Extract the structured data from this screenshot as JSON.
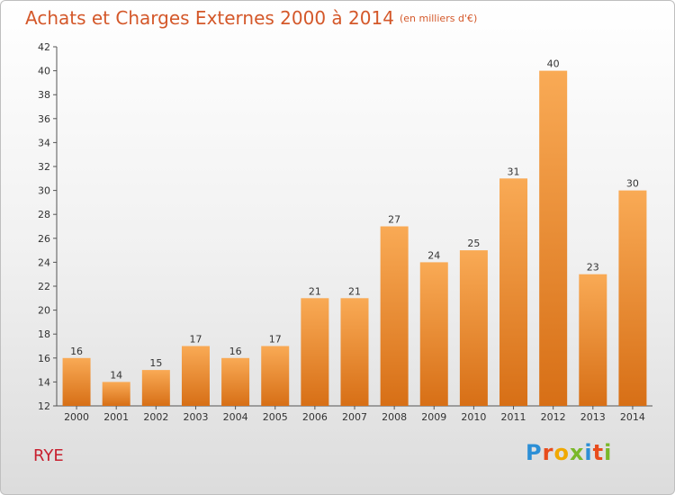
{
  "title": "Achats et Charges Externes 2000 à 2014",
  "unit": "(en milliers d'€)",
  "city": "RYE",
  "logo": {
    "text": "Proxiti",
    "colors": [
      "#2c8fd6",
      "#e84c1c",
      "#f0a800",
      "#7ab829",
      "#2c8fd6",
      "#e84c1c",
      "#7ab829"
    ]
  },
  "colors": {
    "bar_light": "#f9aa55",
    "bar_dark": "#d76f16",
    "title": "#d4582a",
    "city": "#c8202f"
  },
  "chart_data": {
    "type": "bar",
    "title": "Achats et Charges Externes 2000 à 2014",
    "subtitle": "(en milliers d'€)",
    "categories": [
      "2000",
      "2001",
      "2002",
      "2003",
      "2004",
      "2005",
      "2006",
      "2007",
      "2008",
      "2009",
      "2010",
      "2011",
      "2012",
      "2013",
      "2014"
    ],
    "values": [
      16,
      14,
      15,
      17,
      16,
      17,
      21,
      21,
      27,
      24,
      25,
      31,
      40,
      23,
      30
    ],
    "ylim": [
      12,
      42
    ],
    "yticks": [
      12,
      14,
      16,
      18,
      20,
      22,
      24,
      26,
      28,
      30,
      32,
      34,
      36,
      38,
      40,
      42
    ],
    "xlabel": "",
    "ylabel": "",
    "grid": false
  }
}
